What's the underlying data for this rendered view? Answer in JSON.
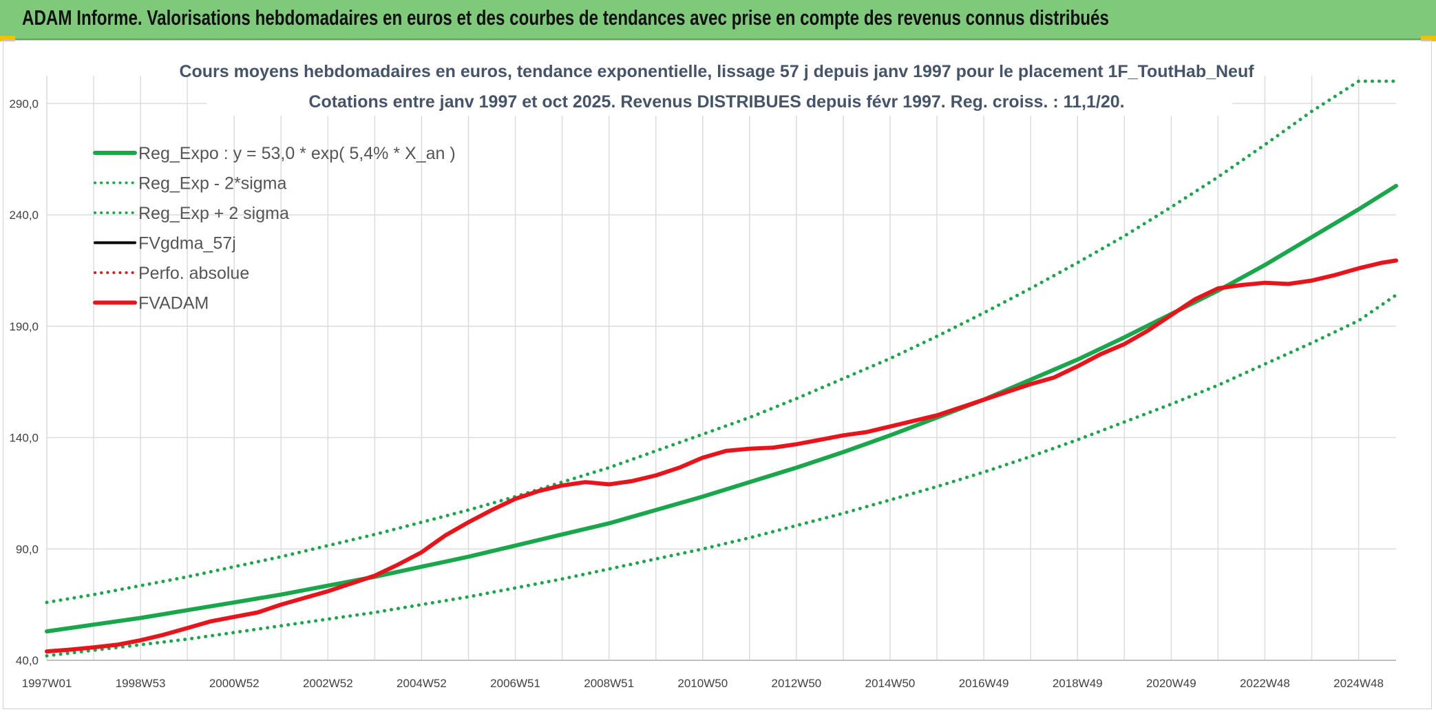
{
  "banner": {
    "title": "ADAM Informe. Valorisations hebdomadaires en euros et des courbes de tendances avec prise en compte des revenus connus distribués"
  },
  "colors": {
    "banner_bg": "#7fc97a",
    "reg_green": "#1aa64a",
    "fvadam_red": "#e8141b",
    "black": "#000000",
    "title": "#44546a",
    "grid": "#dcdcdc"
  },
  "chart_data": {
    "type": "line",
    "title": "Cours moyens hebdomadaires en euros, tendance exponentielle, lissage 57 j depuis janv 1997 pour le placement 1F_ToutHab_Neuf",
    "subtitle": "Cotations entre janv 1997 et oct 2025. Revenus DISTRIBUES depuis févr 1997. Reg. croiss. : 11,1/20.",
    "xlabel": "",
    "ylabel": "",
    "xlim": [
      1997.0,
      2025.8
    ],
    "ylim": [
      40,
      300
    ],
    "yticks": [
      40,
      90,
      140,
      190,
      240,
      290
    ],
    "ytick_labels": [
      "40,0",
      "90,0",
      "140,0",
      "190,0",
      "240,0",
      "290,0"
    ],
    "xtick_values": [
      1997.0,
      1999.0,
      2001.0,
      2003.0,
      2005.0,
      2007.0,
      2009.0,
      2011.0,
      2013.0,
      2015.0,
      2017.0,
      2019.0,
      2021.0,
      2023.0,
      2025.0
    ],
    "xtick_labels": [
      "1997W01",
      "1998W53",
      "2000W52",
      "2002W52",
      "2004W52",
      "2006W51",
      "2008W51",
      "2010W50",
      "2012W50",
      "2014W50",
      "2016W49",
      "2018W49",
      "2020W49",
      "2022W48",
      "2024W48"
    ],
    "grid": true,
    "legend": {
      "placement": "top-left",
      "entries": [
        {
          "label": "Reg_Expo : y = 53,0 * exp( 5,4% *  X_an )",
          "color": "#1aa64a",
          "style": "solid-thick"
        },
        {
          "label": "Reg_Exp - 2*sigma",
          "color": "#1aa64a",
          "style": "dotted"
        },
        {
          "label": "Reg_Exp + 2 sigma",
          "color": "#1aa64a",
          "style": "dotted"
        },
        {
          "label": "FVgdma_57j",
          "color": "#000000",
          "style": "solid"
        },
        {
          "label": "Perfo. absolue",
          "color": "#e8141b",
          "style": "dotted"
        },
        {
          "label": "FVADAM",
          "color": "#e8141b",
          "style": "solid-thick"
        }
      ]
    },
    "series": [
      {
        "name": "Reg_Expo",
        "x": [
          1997,
          1998,
          1999,
          2000,
          2001,
          2002,
          2003,
          2004,
          2005,
          2006,
          2007,
          2008,
          2009,
          2010,
          2011,
          2012,
          2013,
          2014,
          2015,
          2016,
          2017,
          2018,
          2019,
          2020,
          2021,
          2022,
          2023,
          2024,
          2025,
          2025.8
        ],
        "values": [
          53.0,
          56.0,
          59.0,
          62.5,
          66.0,
          69.5,
          73.5,
          77.5,
          82.0,
          86.5,
          91.5,
          96.5,
          101.5,
          107.5,
          113.5,
          120.0,
          126.5,
          133.5,
          141.0,
          149.0,
          157.0,
          166.0,
          175.0,
          185.0,
          195.5,
          206.0,
          217.5,
          230.0,
          242.5,
          253.0
        ]
      },
      {
        "name": "Reg_Exp - 2*sigma",
        "x": [
          1997,
          1998,
          1999,
          2000,
          2001,
          2002,
          2003,
          2004,
          2005,
          2006,
          2007,
          2008,
          2009,
          2010,
          2011,
          2012,
          2013,
          2014,
          2015,
          2016,
          2017,
          2018,
          2019,
          2020,
          2021,
          2022,
          2023,
          2024,
          2025,
          2025.8
        ],
        "values": [
          42.0,
          44.5,
          47.0,
          49.5,
          52.5,
          55.5,
          58.5,
          61.5,
          65.0,
          68.5,
          72.5,
          76.5,
          81.0,
          85.5,
          90.0,
          95.0,
          100.5,
          106.0,
          112.0,
          118.0,
          124.5,
          131.5,
          139.0,
          147.0,
          155.0,
          163.5,
          173.0,
          182.5,
          192.5,
          204.0
        ]
      },
      {
        "name": "Reg_Exp + 2 sigma",
        "x": [
          1997,
          1998,
          1999,
          2000,
          2001,
          2002,
          2003,
          2004,
          2005,
          2006,
          2007,
          2008,
          2009,
          2010,
          2011,
          2012,
          2013,
          2014,
          2015,
          2016,
          2017,
          2018,
          2019,
          2020,
          2021,
          2022,
          2023,
          2024,
          2025,
          2025.8
        ],
        "values": [
          66.0,
          69.5,
          73.5,
          77.5,
          82.0,
          86.5,
          91.5,
          96.5,
          102.0,
          107.5,
          113.5,
          120.0,
          126.5,
          134.0,
          141.5,
          149.0,
          157.5,
          166.5,
          175.5,
          185.5,
          196.0,
          207.0,
          218.5,
          230.5,
          243.5,
          257.0,
          271.5,
          286.5,
          300.0,
          300.0
        ]
      },
      {
        "name": "FVADAM",
        "x": [
          1997,
          1997.5,
          1998,
          1998.5,
          1999,
          1999.5,
          2000,
          2000.5,
          2001,
          2001.5,
          2002,
          2002.5,
          2003,
          2003.5,
          2004,
          2004.5,
          2005,
          2005.5,
          2006,
          2006.5,
          2007,
          2007.5,
          2008,
          2008.5,
          2009,
          2009.5,
          2010,
          2010.5,
          2011,
          2011.5,
          2012,
          2012.5,
          2013,
          2013.5,
          2014,
          2014.5,
          2015,
          2015.5,
          2016,
          2016.5,
          2017,
          2017.5,
          2018,
          2018.5,
          2019,
          2019.5,
          2020,
          2020.5,
          2021,
          2021.5,
          2022,
          2022.5,
          2023,
          2023.5,
          2024,
          2024.5,
          2025,
          2025.5,
          2025.8
        ],
        "values": [
          44.0,
          44.8,
          45.8,
          47.0,
          49.0,
          51.5,
          54.5,
          57.5,
          59.5,
          61.5,
          65.0,
          68.0,
          71.0,
          74.5,
          78.0,
          83.0,
          88.5,
          96.0,
          102.0,
          107.5,
          112.5,
          116.0,
          118.5,
          120.0,
          119.0,
          120.5,
          123.0,
          126.5,
          131.0,
          134.0,
          135.0,
          135.5,
          137.0,
          139.0,
          141.0,
          142.5,
          145.0,
          147.5,
          150.0,
          153.5,
          157.0,
          160.5,
          164.0,
          167.0,
          172.0,
          177.5,
          182.0,
          188.0,
          195.0,
          202.0,
          207.0,
          208.5,
          209.5,
          209.0,
          210.5,
          213.0,
          216.0,
          218.5,
          219.5
        ]
      }
    ]
  }
}
